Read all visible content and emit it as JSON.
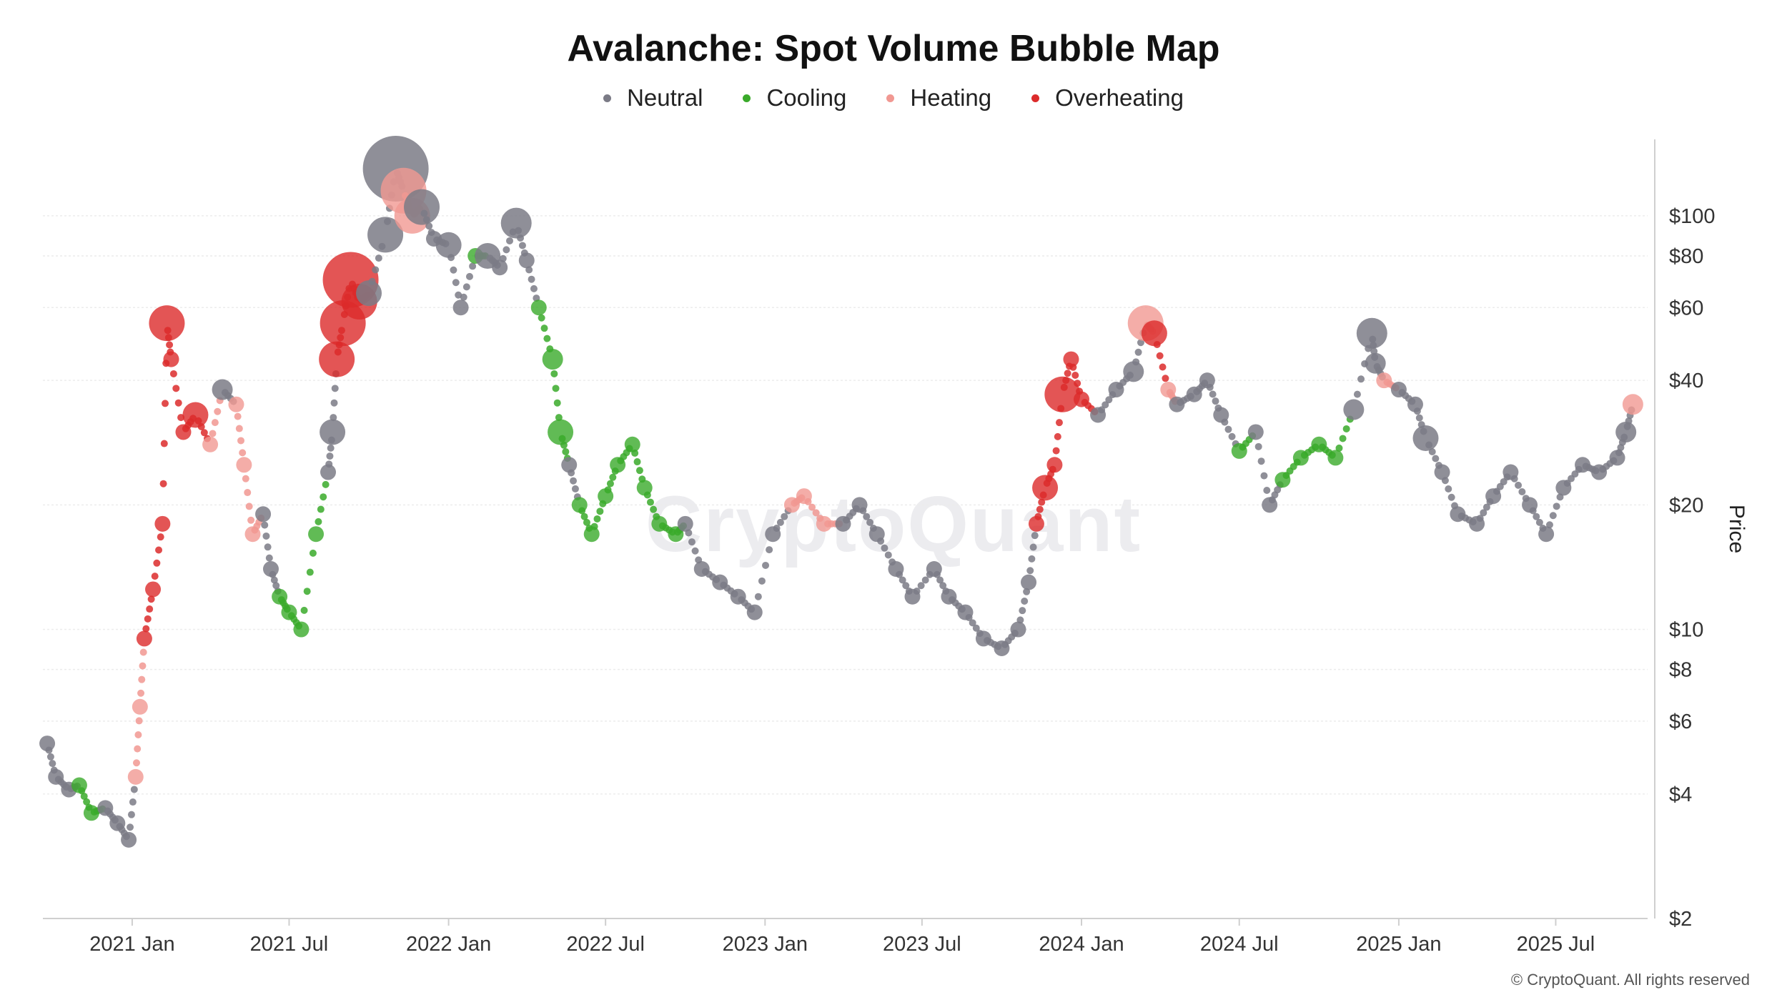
{
  "colors": {
    "Neutral": "#7b7b86",
    "Cooling": "#3aaa2a",
    "Heating": "#f19892",
    "Overheating": "#dc2b2b",
    "grid": "#ececec",
    "axis": "#cfcfcf"
  },
  "watermark": "CryptoQuant",
  "copyright": "© CryptoQuant. All rights reserved",
  "chart_data": {
    "type": "scatter",
    "title": "Avalanche: Spot Volume Bubble Map",
    "xlabel": "",
    "ylabel": "Price",
    "yscale": "log",
    "ylim": [
      2,
      150
    ],
    "xlim": [
      "2020-09-20",
      "2025-10-15"
    ],
    "y_ticks": [
      {
        "value": 2,
        "label": "$2"
      },
      {
        "value": 4,
        "label": "$4"
      },
      {
        "value": 6,
        "label": "$6"
      },
      {
        "value": 8,
        "label": "$8"
      },
      {
        "value": 10,
        "label": "$10"
      },
      {
        "value": 20,
        "label": "$20"
      },
      {
        "value": 40,
        "label": "$40"
      },
      {
        "value": 60,
        "label": "$60"
      },
      {
        "value": 80,
        "label": "$80"
      },
      {
        "value": 100,
        "label": "$100"
      }
    ],
    "x_ticks": [
      {
        "date": "2021-01-01",
        "label": "2021 Jan"
      },
      {
        "date": "2021-07-01",
        "label": "2021 Jul"
      },
      {
        "date": "2022-01-01",
        "label": "2022 Jan"
      },
      {
        "date": "2022-07-01",
        "label": "2022 Jul"
      },
      {
        "date": "2023-01-01",
        "label": "2023 Jan"
      },
      {
        "date": "2023-07-01",
        "label": "2023 Jul"
      },
      {
        "date": "2024-01-01",
        "label": "2024 Jan"
      },
      {
        "date": "2024-07-01",
        "label": "2024 Jul"
      },
      {
        "date": "2025-01-01",
        "label": "2025 Jan"
      },
      {
        "date": "2025-07-01",
        "label": "2025 Jul"
      }
    ],
    "legend": [
      "Neutral",
      "Cooling",
      "Heating",
      "Overheating"
    ],
    "legend_position": "top-center",
    "series": [
      {
        "name": "Price",
        "points": [
          [
            "2020-09-25",
            5.3,
            "Neutral",
            1
          ],
          [
            "2020-10-05",
            4.4,
            "Neutral",
            1
          ],
          [
            "2020-10-20",
            4.1,
            "Neutral",
            1
          ],
          [
            "2020-11-01",
            4.2,
            "Cooling",
            1
          ],
          [
            "2020-11-15",
            3.6,
            "Cooling",
            1
          ],
          [
            "2020-12-01",
            3.7,
            "Neutral",
            1
          ],
          [
            "2020-12-15",
            3.4,
            "Neutral",
            1
          ],
          [
            "2020-12-28",
            3.1,
            "Neutral",
            1
          ],
          [
            "2021-01-05",
            4.4,
            "Heating",
            1
          ],
          [
            "2021-01-10",
            6.5,
            "Heating",
            1
          ],
          [
            "2021-01-15",
            9.5,
            "Overheating",
            1
          ],
          [
            "2021-01-25",
            12.5,
            "Overheating",
            1
          ],
          [
            "2021-02-05",
            18,
            "Overheating",
            1
          ],
          [
            "2021-02-10",
            55,
            "Overheating",
            3
          ],
          [
            "2021-02-15",
            45,
            "Overheating",
            1
          ],
          [
            "2021-03-01",
            30,
            "Overheating",
            1
          ],
          [
            "2021-03-15",
            33,
            "Overheating",
            2
          ],
          [
            "2021-04-01",
            28,
            "Heating",
            1
          ],
          [
            "2021-04-15",
            38,
            "Neutral",
            1.5
          ],
          [
            "2021-05-01",
            35,
            "Heating",
            1
          ],
          [
            "2021-05-10",
            25,
            "Heating",
            1
          ],
          [
            "2021-05-20",
            17,
            "Heating",
            1
          ],
          [
            "2021-06-01",
            19,
            "Neutral",
            1
          ],
          [
            "2021-06-10",
            14,
            "Neutral",
            1
          ],
          [
            "2021-06-20",
            12,
            "Cooling",
            1
          ],
          [
            "2021-07-01",
            11,
            "Cooling",
            1
          ],
          [
            "2021-07-15",
            10,
            "Cooling",
            1
          ],
          [
            "2021-08-01",
            17,
            "Cooling",
            1
          ],
          [
            "2021-08-15",
            24,
            "Neutral",
            1
          ],
          [
            "2021-08-20",
            30,
            "Neutral",
            2
          ],
          [
            "2021-08-25",
            45,
            "Overheating",
            3
          ],
          [
            "2021-09-01",
            55,
            "Overheating",
            4
          ],
          [
            "2021-09-10",
            70,
            "Overheating",
            5
          ],
          [
            "2021-09-20",
            62,
            "Overheating",
            3
          ],
          [
            "2021-10-01",
            65,
            "Neutral",
            2
          ],
          [
            "2021-10-20",
            90,
            "Neutral",
            3
          ],
          [
            "2021-11-01",
            130,
            "Neutral",
            6
          ],
          [
            "2021-11-10",
            115,
            "Heating",
            4
          ],
          [
            "2021-11-20",
            100,
            "Heating",
            3
          ],
          [
            "2021-12-01",
            105,
            "Neutral",
            3
          ],
          [
            "2021-12-15",
            88,
            "Neutral",
            1
          ],
          [
            "2022-01-01",
            85,
            "Neutral",
            2
          ],
          [
            "2022-01-15",
            60,
            "Neutral",
            1
          ],
          [
            "2022-02-01",
            80,
            "Cooling",
            1
          ],
          [
            "2022-02-15",
            80,
            "Neutral",
            2
          ],
          [
            "2022-03-01",
            75,
            "Neutral",
            1
          ],
          [
            "2022-03-20",
            96,
            "Neutral",
            2.5
          ],
          [
            "2022-04-01",
            78,
            "Neutral",
            1
          ],
          [
            "2022-04-15",
            60,
            "Cooling",
            1
          ],
          [
            "2022-05-01",
            45,
            "Cooling",
            1.5
          ],
          [
            "2022-05-10",
            30,
            "Cooling",
            2
          ],
          [
            "2022-05-20",
            25,
            "Neutral",
            1
          ],
          [
            "2022-06-01",
            20,
            "Cooling",
            1
          ],
          [
            "2022-06-15",
            17,
            "Cooling",
            1
          ],
          [
            "2022-07-01",
            21,
            "Cooling",
            1
          ],
          [
            "2022-07-15",
            25,
            "Cooling",
            1
          ],
          [
            "2022-08-01",
            28,
            "Cooling",
            1
          ],
          [
            "2022-08-15",
            22,
            "Cooling",
            1
          ],
          [
            "2022-09-01",
            18,
            "Cooling",
            1
          ],
          [
            "2022-09-20",
            17,
            "Cooling",
            1
          ],
          [
            "2022-10-01",
            18,
            "Neutral",
            1
          ],
          [
            "2022-10-20",
            14,
            "Neutral",
            1
          ],
          [
            "2022-11-10",
            13,
            "Neutral",
            1
          ],
          [
            "2022-12-01",
            12,
            "Neutral",
            1
          ],
          [
            "2022-12-20",
            11,
            "Neutral",
            1
          ],
          [
            "2023-01-10",
            17,
            "Neutral",
            1
          ],
          [
            "2023-02-01",
            20,
            "Heating",
            1
          ],
          [
            "2023-02-15",
            21,
            "Heating",
            1
          ],
          [
            "2023-03-10",
            18,
            "Heating",
            1
          ],
          [
            "2023-04-01",
            18,
            "Neutral",
            1
          ],
          [
            "2023-04-20",
            20,
            "Neutral",
            1
          ],
          [
            "2023-05-10",
            17,
            "Neutral",
            1
          ],
          [
            "2023-06-01",
            14,
            "Neutral",
            1
          ],
          [
            "2023-06-20",
            12,
            "Neutral",
            1
          ],
          [
            "2023-07-15",
            14,
            "Neutral",
            1
          ],
          [
            "2023-08-01",
            12,
            "Neutral",
            1
          ],
          [
            "2023-08-20",
            11,
            "Neutral",
            1
          ],
          [
            "2023-09-10",
            9.5,
            "Neutral",
            1
          ],
          [
            "2023-10-01",
            9,
            "Neutral",
            1
          ],
          [
            "2023-10-20",
            10,
            "Neutral",
            1
          ],
          [
            "2023-11-01",
            13,
            "Neutral",
            1
          ],
          [
            "2023-11-10",
            18,
            "Overheating",
            1
          ],
          [
            "2023-11-20",
            22,
            "Overheating",
            2
          ],
          [
            "2023-12-01",
            25,
            "Overheating",
            1
          ],
          [
            "2023-12-10",
            37,
            "Overheating",
            3
          ],
          [
            "2023-12-20",
            45,
            "Overheating",
            1
          ],
          [
            "2024-01-01",
            36,
            "Overheating",
            1
          ],
          [
            "2024-01-20",
            33,
            "Neutral",
            1
          ],
          [
            "2024-02-10",
            38,
            "Neutral",
            1
          ],
          [
            "2024-03-01",
            42,
            "Neutral",
            1.5
          ],
          [
            "2024-03-15",
            55,
            "Heating",
            3
          ],
          [
            "2024-03-25",
            52,
            "Overheating",
            2
          ],
          [
            "2024-04-10",
            38,
            "Heating",
            1
          ],
          [
            "2024-04-20",
            35,
            "Neutral",
            1
          ],
          [
            "2024-05-10",
            37,
            "Neutral",
            1
          ],
          [
            "2024-05-25",
            40,
            "Neutral",
            1
          ],
          [
            "2024-06-10",
            33,
            "Neutral",
            1
          ],
          [
            "2024-07-01",
            27,
            "Cooling",
            1
          ],
          [
            "2024-07-20",
            30,
            "Neutral",
            1
          ],
          [
            "2024-08-05",
            20,
            "Neutral",
            1
          ],
          [
            "2024-08-20",
            23,
            "Cooling",
            1
          ],
          [
            "2024-09-10",
            26,
            "Cooling",
            1
          ],
          [
            "2024-10-01",
            28,
            "Cooling",
            1
          ],
          [
            "2024-10-20",
            26,
            "Cooling",
            1
          ],
          [
            "2024-11-10",
            34,
            "Neutral",
            1.5
          ],
          [
            "2024-12-01",
            52,
            "Neutral",
            2.5
          ],
          [
            "2024-12-05",
            44,
            "Neutral",
            1.5
          ],
          [
            "2024-12-15",
            40,
            "Heating",
            1
          ],
          [
            "2025-01-01",
            38,
            "Neutral",
            1
          ],
          [
            "2025-01-20",
            35,
            "Neutral",
            1
          ],
          [
            "2025-02-01",
            29,
            "Neutral",
            2
          ],
          [
            "2025-02-20",
            24,
            "Neutral",
            1
          ],
          [
            "2025-03-10",
            19,
            "Neutral",
            1
          ],
          [
            "2025-04-01",
            18,
            "Neutral",
            1
          ],
          [
            "2025-04-20",
            21,
            "Neutral",
            1
          ],
          [
            "2025-05-10",
            24,
            "Neutral",
            1
          ],
          [
            "2025-06-01",
            20,
            "Neutral",
            1
          ],
          [
            "2025-06-20",
            17,
            "Neutral",
            1
          ],
          [
            "2025-07-10",
            22,
            "Neutral",
            1
          ],
          [
            "2025-08-01",
            25,
            "Neutral",
            1
          ],
          [
            "2025-08-20",
            24,
            "Neutral",
            1
          ],
          [
            "2025-09-10",
            26,
            "Neutral",
            1
          ],
          [
            "2025-09-20",
            30,
            "Neutral",
            1.5
          ],
          [
            "2025-09-28",
            35,
            "Heating",
            1.5
          ]
        ]
      }
    ]
  }
}
